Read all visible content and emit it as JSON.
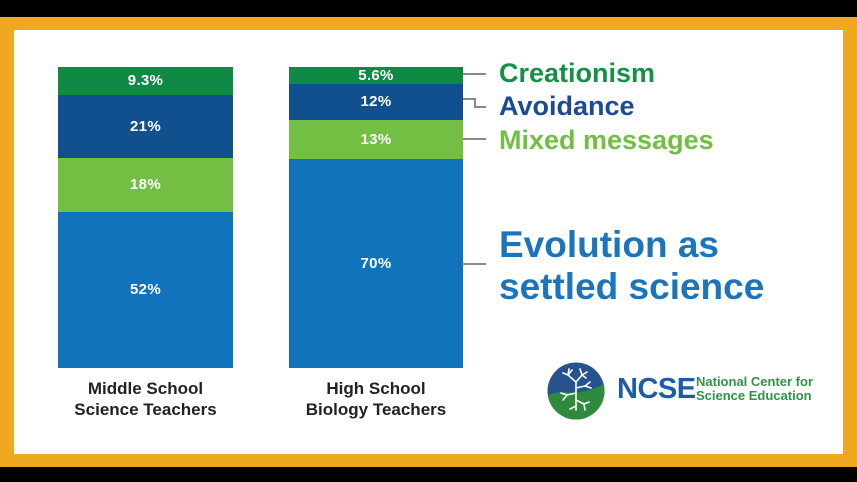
{
  "colors": {
    "frame_orange": "#eea920",
    "outer_black": "#000000",
    "canvas_white": "#ffffff",
    "connector_gray": "#8a8a8a",
    "category_label": "#222222",
    "value_label": "#ffffff"
  },
  "chart_data": {
    "type": "bar",
    "variant": "stacked-percentage",
    "unit": "%",
    "title": "",
    "legend_position": "right",
    "ylim": [
      0,
      100
    ],
    "categories": [
      "Middle School Science Teachers",
      "High School Biology Teachers"
    ],
    "category_lines": [
      [
        "Middle School",
        "Science Teachers"
      ],
      [
        "High School",
        "Biology Teachers"
      ]
    ],
    "series": [
      {
        "name": "Creationism",
        "color": "#0f8a44",
        "label_color": "#168f47",
        "values": [
          9.3,
          5.6
        ],
        "value_labels": [
          "9.3%",
          "5.6%"
        ]
      },
      {
        "name": "Avoidance",
        "color": "#11508f",
        "label_color": "#1a4b96",
        "values": [
          21,
          12
        ],
        "value_labels": [
          "21%",
          "12%"
        ]
      },
      {
        "name": "Mixed messages",
        "color": "#72bf44",
        "label_color": "#72bf44",
        "values": [
          18,
          13
        ],
        "value_labels": [
          "18%",
          "13%"
        ]
      },
      {
        "name": "Evolution as settled science",
        "color": "#1273bd",
        "label_color": "#1b75bc",
        "values": [
          52,
          70
        ],
        "value_labels": [
          "52%",
          "70%"
        ],
        "legend_lines": [
          "Evolution as",
          "settled science"
        ]
      }
    ]
  },
  "logo": {
    "acronym": "NCSE",
    "acronym_color": "#1d5ca8",
    "tagline_line1": "National Center for",
    "tagline_line2": "Science Education",
    "tagline_color": "#2e9446",
    "globe_blue": "#26528f",
    "globe_green": "#2e8b3e"
  }
}
